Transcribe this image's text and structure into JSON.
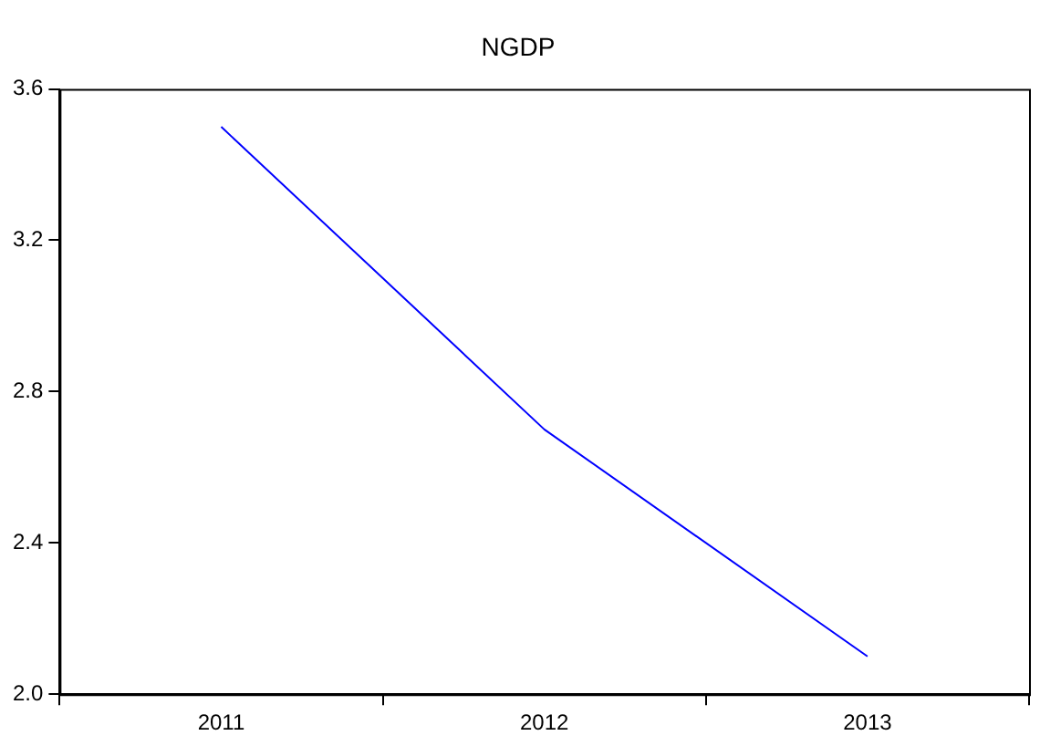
{
  "chart_data": {
    "type": "line",
    "title": "NGDP",
    "categories": [
      "2011",
      "2012",
      "2013"
    ],
    "series": [
      {
        "color": "#0000ff",
        "values": [
          3.5,
          2.7,
          2.1
        ]
      }
    ],
    "ylim": [
      2.0,
      3.6
    ],
    "yticks": [
      {
        "value": 2.0,
        "label": "2.0"
      },
      {
        "value": 2.4,
        "label": "2.4"
      },
      {
        "value": 2.8,
        "label": "2.8"
      },
      {
        "value": 3.2,
        "label": "3.2"
      },
      {
        "value": 3.6,
        "label": "3.6"
      }
    ],
    "grid": false,
    "legend": false,
    "marker": "none",
    "line_style": "solid"
  }
}
